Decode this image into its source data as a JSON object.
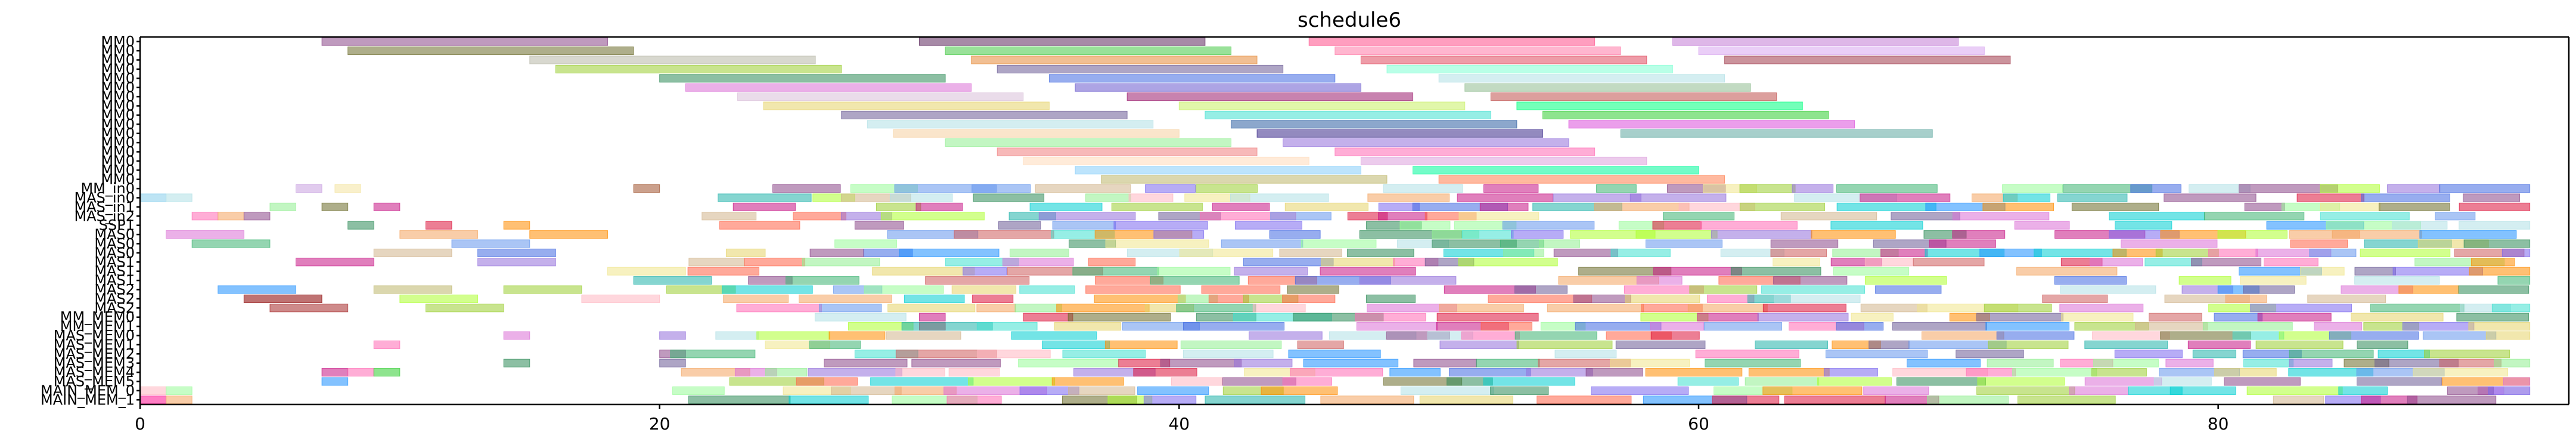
{
  "chart_data": {
    "type": "gantt",
    "title": "schedule6",
    "xlabel": "",
    "ylabel": "",
    "xlim": [
      0,
      93.5
    ],
    "xticks": [
      0,
      20,
      40,
      60,
      80
    ],
    "xtick_labels": [
      "0",
      "20",
      "40",
      "60",
      "80"
    ],
    "grid": false,
    "rows": [
      "MM0",
      "MM0",
      "MM0",
      "MM0",
      "MM0",
      "MM0",
      "MM0",
      "MM0",
      "MM0",
      "MM0",
      "MM0",
      "MM0",
      "MM0",
      "MM0",
      "MM0",
      "MM0",
      "MM_in0",
      "MAS_in0",
      "MAS_in1",
      "MAS_in2",
      "SSP1",
      "MAS0",
      "MAS0",
      "MAS0",
      "MAS1",
      "MAS1",
      "MAS1",
      "MAS2",
      "MAS2",
      "MAS2",
      "MM_MEM0",
      "MM_MEM1",
      "MAS_MEM0",
      "MAS_MEM1",
      "MAS_MEM2",
      "MAS_MEM3",
      "MAS_MEM4",
      "MAS_MEM5",
      "MAIN_MEM_0",
      "MAIN_MEM_1"
    ],
    "ytick_labels": [
      "MM0",
      "MM0",
      "MM0",
      "MM0",
      "MM0",
      "MM0",
      "MM0",
      "MM0",
      "MM0",
      "MM0",
      "MM0",
      "MM0",
      "MM0",
      "MM0",
      "MM0",
      "MM0",
      "MM_in0",
      "MAS_in0",
      "MAS_in1",
      "MAS_in2",
      "SSP1",
      "MAS0",
      "MAS0",
      "MAS0",
      "MAS1",
      "MAS1",
      "MAS1",
      "MAS2",
      "MAS2",
      "MAS2",
      "MM_MEM0",
      "MM_MEM1",
      "MAS_MEM0",
      "MAS_MEM1",
      "MAS_MEM2",
      "MAS_MEM3",
      "MAS_MEM4",
      "MAS_MEM5",
      "MAIN_MEM_0",
      "MAIN_MEM_1"
    ],
    "palette": [
      "#8b4789",
      "#6b6b2a",
      "#9acd32",
      "#2e8b57",
      "#da70d6",
      "#e6d36a",
      "#6b5b95",
      "#b0e0e6",
      "#4169e1",
      "#90ee90",
      "#ff69b4",
      "#d2b48c",
      "#cd5c5c",
      "#1e90ff",
      "#ff8c00",
      "#40e0d0",
      "#dc143c",
      "#7b68ee",
      "#f0e68c",
      "#c71585",
      "#20b2aa",
      "#9370db",
      "#98fb98",
      "#f4a460",
      "#00ced1",
      "#ffb6c1",
      "#3cb371",
      "#6495ed",
      "#ff6347",
      "#adff2f"
    ],
    "bars": [
      {
        "row": 0,
        "start": 7,
        "end": 18,
        "color": "#8b4789"
      },
      {
        "row": 0,
        "start": 30,
        "end": 41,
        "color": "#5e2a5e"
      },
      {
        "row": 0,
        "start": 45,
        "end": 56,
        "color": "#ff4f8b"
      },
      {
        "row": 0,
        "start": 59,
        "end": 70,
        "color": "#c37bd6"
      },
      {
        "row": 1,
        "start": 8,
        "end": 19,
        "color": "#6b6b2a"
      },
      {
        "row": 1,
        "start": 31,
        "end": 42,
        "color": "#45c945"
      },
      {
        "row": 1,
        "start": 46,
        "end": 57,
        "color": "#ff7aa8"
      },
      {
        "row": 1,
        "start": 60,
        "end": 71,
        "color": "#d9a6f0"
      },
      {
        "row": 2,
        "start": 15,
        "end": 26,
        "color": "#b8b8a8"
      },
      {
        "row": 2,
        "start": 32,
        "end": 43,
        "color": "#e58b3a"
      },
      {
        "row": 2,
        "start": 47,
        "end": 58,
        "color": "#e04b60"
      },
      {
        "row": 2,
        "start": 61,
        "end": 72,
        "color": "#a03a4a"
      },
      {
        "row": 3,
        "start": 16,
        "end": 27,
        "color": "#9acd32"
      },
      {
        "row": 3,
        "start": 33,
        "end": 44,
        "color": "#6b5b95"
      },
      {
        "row": 3,
        "start": 48,
        "end": 59,
        "color": "#7fffd4"
      },
      {
        "row": 4,
        "start": 20,
        "end": 31,
        "color": "#2e8b57"
      },
      {
        "row": 4,
        "start": 35,
        "end": 46,
        "color": "#4169e1"
      },
      {
        "row": 4,
        "start": 50,
        "end": 61,
        "color": "#b0e0e6"
      },
      {
        "row": 5,
        "start": 21,
        "end": 32,
        "color": "#da70d6"
      },
      {
        "row": 5,
        "start": 36,
        "end": 47,
        "color": "#6a5acd"
      },
      {
        "row": 5,
        "start": 51,
        "end": 62,
        "color": "#8fbc8f"
      },
      {
        "row": 6,
        "start": 23,
        "end": 34,
        "color": "#d8bfd8"
      },
      {
        "row": 6,
        "start": 38,
        "end": 49,
        "color": "#9b1b6e"
      },
      {
        "row": 6,
        "start": 52,
        "end": 63,
        "color": "#c0504d"
      },
      {
        "row": 7,
        "start": 24,
        "end": 35,
        "color": "#e6d36a"
      },
      {
        "row": 7,
        "start": 40,
        "end": 51,
        "color": "#c8f064"
      },
      {
        "row": 7,
        "start": 53,
        "end": 64,
        "color": "#00ff7f"
      },
      {
        "row": 8,
        "start": 27,
        "end": 38,
        "color": "#6b5b95"
      },
      {
        "row": 8,
        "start": 41,
        "end": 52,
        "color": "#40e0d0"
      },
      {
        "row": 8,
        "start": 54,
        "end": 65,
        "color": "#32cd32"
      },
      {
        "row": 9,
        "start": 28,
        "end": 39,
        "color": "#b0e0e6"
      },
      {
        "row": 9,
        "start": 42,
        "end": 53,
        "color": "#2e5fa3"
      },
      {
        "row": 9,
        "start": 55,
        "end": 66,
        "color": "#da4fda"
      },
      {
        "row": 10,
        "start": 29,
        "end": 40,
        "color": "#f5d0a0"
      },
      {
        "row": 10,
        "start": 43,
        "end": 54,
        "color": "#3a2a8a"
      },
      {
        "row": 10,
        "start": 57,
        "end": 69,
        "color": "#5fa8a0"
      },
      {
        "row": 11,
        "start": 31,
        "end": 42,
        "color": "#90ee90"
      },
      {
        "row": 11,
        "start": 44,
        "end": 55,
        "color": "#9370db"
      },
      {
        "row": 12,
        "start": 33,
        "end": 43,
        "color": "#f08080"
      },
      {
        "row": 12,
        "start": 46,
        "end": 56,
        "color": "#ff69b4"
      },
      {
        "row": 13,
        "start": 34,
        "end": 45,
        "color": "#ffdab9"
      },
      {
        "row": 13,
        "start": 47,
        "end": 58,
        "color": "#dda0dd"
      },
      {
        "row": 14,
        "start": 36,
        "end": 47,
        "color": "#87cefa"
      },
      {
        "row": 14,
        "start": 49,
        "end": 60,
        "color": "#00fa9a"
      },
      {
        "row": 15,
        "start": 37,
        "end": 48,
        "color": "#bdb76b"
      },
      {
        "row": 15,
        "start": 50,
        "end": 61,
        "color": "#ff7f50"
      },
      {
        "row": 16,
        "start": 6,
        "end": 7,
        "color": "#c8a0e0"
      },
      {
        "row": 16,
        "start": 7.5,
        "end": 8.5,
        "color": "#f4e4a0"
      },
      {
        "row": 16,
        "start": 19,
        "end": 20,
        "color": "#a0522d"
      },
      {
        "row": 17,
        "start": 0,
        "end": 1,
        "color": "#87ceeb"
      },
      {
        "row": 17,
        "start": 1,
        "end": 2,
        "color": "#b0e0e6"
      },
      {
        "row": 18,
        "start": 5,
        "end": 6,
        "color": "#90ee90"
      },
      {
        "row": 18,
        "start": 7,
        "end": 8,
        "color": "#6b6b2a"
      },
      {
        "row": 18,
        "start": 9,
        "end": 10,
        "color": "#c71585"
      },
      {
        "row": 19,
        "start": 2,
        "end": 3,
        "color": "#ff69b4"
      },
      {
        "row": 19,
        "start": 3,
        "end": 4,
        "color": "#f4a460"
      },
      {
        "row": 19,
        "start": 4,
        "end": 5,
        "color": "#8b4789"
      },
      {
        "row": 20,
        "start": 8,
        "end": 9,
        "color": "#2e8b57"
      },
      {
        "row": 20,
        "start": 11,
        "end": 12,
        "color": "#dc143c"
      },
      {
        "row": 20,
        "start": 14,
        "end": 15,
        "color": "#ff8c00"
      },
      {
        "row": 21,
        "start": 1,
        "end": 4,
        "color": "#da70d6"
      },
      {
        "row": 21,
        "start": 10,
        "end": 13,
        "color": "#f4a460"
      },
      {
        "row": 21,
        "start": 15,
        "end": 18,
        "color": "#ff8c00"
      },
      {
        "row": 22,
        "start": 2,
        "end": 5,
        "color": "#3cb371"
      },
      {
        "row": 22,
        "start": 12,
        "end": 15,
        "color": "#6495ed"
      },
      {
        "row": 23,
        "start": 9,
        "end": 12,
        "color": "#d2b48c"
      },
      {
        "row": 23,
        "start": 13,
        "end": 16,
        "color": "#4169e1"
      },
      {
        "row": 24,
        "start": 6,
        "end": 9,
        "color": "#c71585"
      },
      {
        "row": 24,
        "start": 13,
        "end": 16,
        "color": "#9370db"
      },
      {
        "row": 25,
        "start": 18,
        "end": 21,
        "color": "#f0e68c"
      },
      {
        "row": 26,
        "start": 19,
        "end": 22,
        "color": "#20b2aa"
      },
      {
        "row": 27,
        "start": 3,
        "end": 6,
        "color": "#1e90ff"
      },
      {
        "row": 27,
        "start": 9,
        "end": 12,
        "color": "#bdb76b"
      },
      {
        "row": 27,
        "start": 14,
        "end": 17,
        "color": "#9acd32"
      },
      {
        "row": 28,
        "start": 4,
        "end": 7,
        "color": "#8b0000"
      },
      {
        "row": 28,
        "start": 10,
        "end": 13,
        "color": "#adff2f"
      },
      {
        "row": 28,
        "start": 17,
        "end": 20,
        "color": "#ffb6c1"
      },
      {
        "row": 29,
        "start": 5,
        "end": 8,
        "color": "#a52a2a"
      },
      {
        "row": 29,
        "start": 11,
        "end": 14,
        "color": "#9acd32"
      },
      {
        "row": 30,
        "start": 30,
        "end": 31,
        "color": "#c71585"
      },
      {
        "row": 31,
        "start": 30,
        "end": 31,
        "color": "#dc143c"
      },
      {
        "row": 32,
        "start": 14,
        "end": 15,
        "color": "#da70d6"
      },
      {
        "row": 32,
        "start": 20,
        "end": 21,
        "color": "#9370db"
      },
      {
        "row": 33,
        "start": 9,
        "end": 10,
        "color": "#ff69b4"
      },
      {
        "row": 34,
        "start": 20,
        "end": 21,
        "color": "#8b4789"
      },
      {
        "row": 35,
        "start": 14,
        "end": 15,
        "color": "#2e8b57"
      },
      {
        "row": 35,
        "start": 20,
        "end": 21,
        "color": "#6b5b95"
      },
      {
        "row": 36,
        "start": 7,
        "end": 8,
        "color": "#c71585"
      },
      {
        "row": 36,
        "start": 8,
        "end": 9,
        "color": "#ff69b4"
      },
      {
        "row": 36,
        "start": 9,
        "end": 10,
        "color": "#32cd32"
      },
      {
        "row": 37,
        "start": 7,
        "end": 8,
        "color": "#1e90ff"
      },
      {
        "row": 38,
        "start": 0,
        "end": 1,
        "color": "#ffb6c1"
      },
      {
        "row": 38,
        "start": 1,
        "end": 2,
        "color": "#98fb98"
      },
      {
        "row": 38,
        "start": 90,
        "end": 91,
        "color": "#da70d6"
      },
      {
        "row": 38,
        "start": 91,
        "end": 92,
        "color": "#d8bfd8"
      },
      {
        "row": 39,
        "start": 0,
        "end": 1,
        "color": "#ff1493"
      },
      {
        "row": 39,
        "start": 1,
        "end": 2,
        "color": "#f4a460"
      }
    ],
    "dense_fill": {
      "description": "many additional overlapping translucent task bars",
      "rows": [
        16,
        39
      ],
      "x_range": [
        20,
        91
      ],
      "seed": 6
    }
  }
}
